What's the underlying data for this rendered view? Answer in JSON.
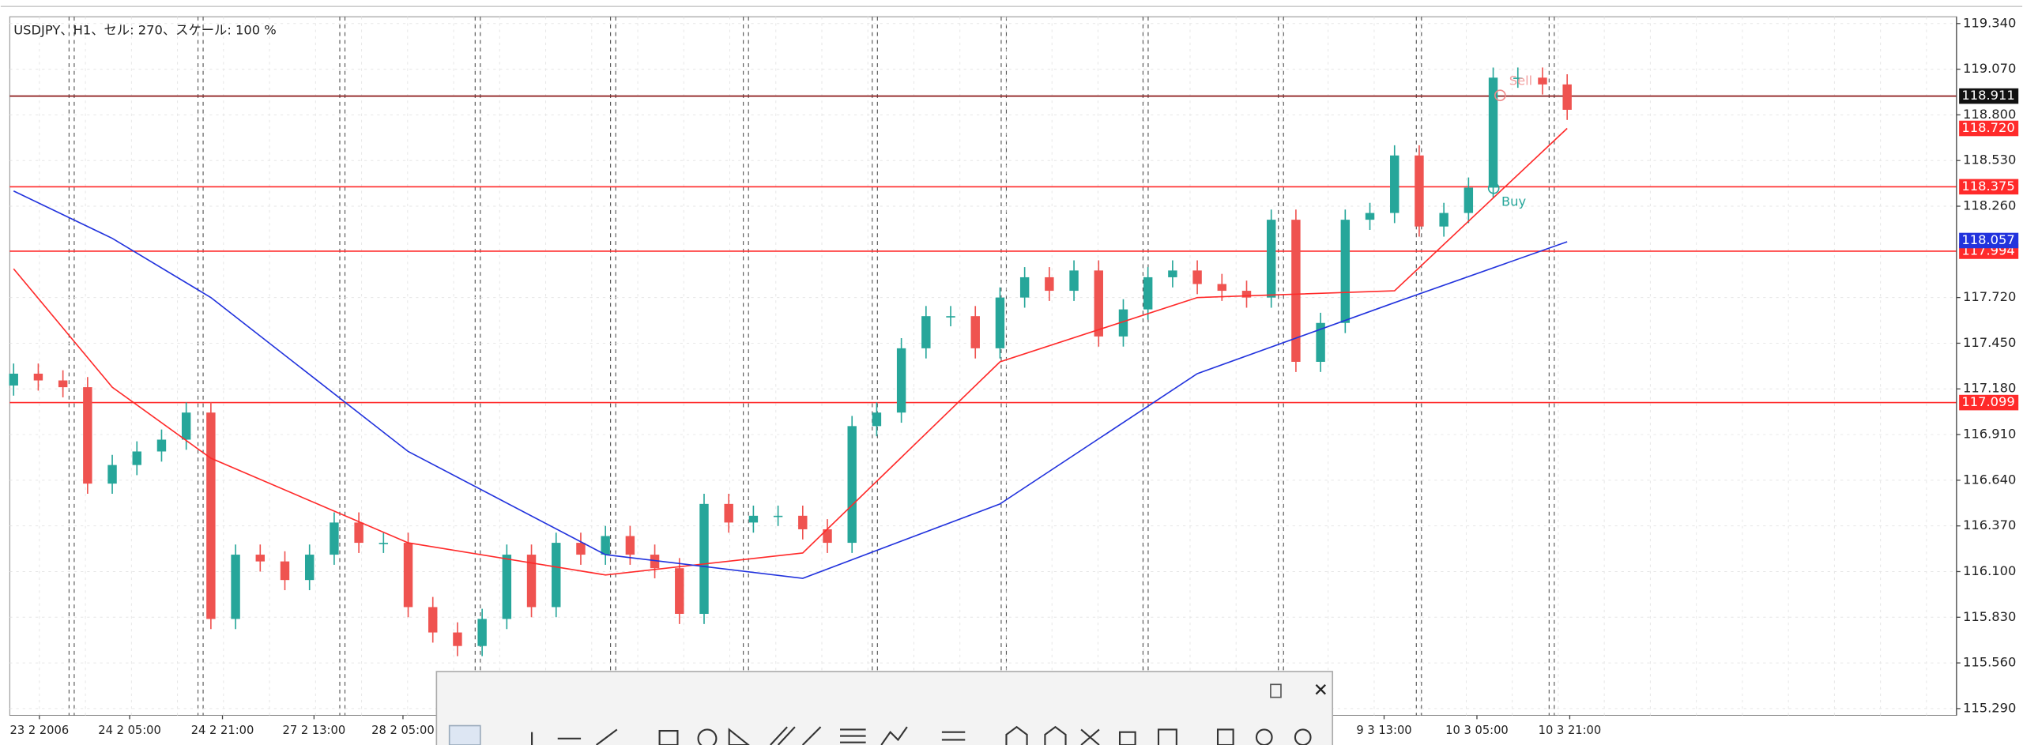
{
  "chart_data": {
    "type": "candlestick",
    "title": "USDJPY、H1、セル: 270、スケール: 100 %",
    "up_color": "#26a69a",
    "down_color": "#ef5350",
    "open": [
      117.2,
      117.27,
      117.23,
      117.19,
      116.62,
      116.73,
      116.81,
      116.88,
      117.04,
      115.82,
      116.2,
      116.16,
      116.05,
      116.2,
      116.39,
      116.27,
      116.27,
      115.89,
      115.74,
      115.66,
      115.82,
      116.2,
      115.89,
      116.27,
      116.2,
      116.31,
      116.2,
      116.12,
      115.85,
      116.5,
      116.39,
      116.43,
      116.43,
      116.35,
      116.27,
      116.96,
      117.04,
      117.42,
      117.61,
      117.61,
      117.42,
      117.72,
      117.84,
      117.76,
      117.88,
      117.49,
      117.65,
      117.84,
      117.88,
      117.8,
      117.76,
      117.72,
      118.18,
      117.34,
      117.57,
      118.18,
      118.22,
      118.56,
      118.14,
      118.22,
      118.37,
      119.02,
      119.02,
      118.98
    ],
    "high": [
      117.33,
      117.33,
      117.29,
      117.25,
      116.79,
      116.87,
      116.94,
      117.1,
      117.1,
      116.26,
      116.26,
      116.22,
      116.26,
      116.45,
      116.45,
      116.33,
      116.33,
      115.95,
      115.8,
      115.88,
      116.26,
      116.26,
      116.33,
      116.33,
      116.37,
      116.37,
      116.26,
      116.18,
      116.56,
      116.56,
      116.49,
      116.49,
      116.49,
      116.41,
      117.02,
      117.1,
      117.48,
      117.67,
      117.67,
      117.67,
      117.78,
      117.9,
      117.9,
      117.94,
      117.94,
      117.71,
      117.9,
      117.94,
      117.94,
      117.86,
      117.82,
      118.24,
      118.24,
      117.63,
      118.24,
      118.28,
      118.62,
      118.62,
      118.28,
      118.43,
      119.08,
      119.08,
      119.08,
      119.04
    ],
    "low": [
      117.14,
      117.17,
      117.13,
      116.56,
      116.56,
      116.67,
      116.75,
      116.82,
      115.76,
      115.76,
      116.1,
      115.99,
      115.99,
      116.14,
      116.21,
      116.21,
      115.83,
      115.68,
      115.6,
      115.6,
      115.76,
      115.83,
      115.83,
      116.14,
      116.14,
      116.14,
      116.06,
      115.79,
      115.79,
      116.33,
      116.33,
      116.37,
      116.29,
      116.21,
      116.21,
      116.9,
      116.98,
      117.36,
      117.55,
      117.36,
      117.36,
      117.66,
      117.7,
      117.7,
      117.43,
      117.43,
      117.59,
      117.78,
      117.74,
      117.7,
      117.66,
      117.66,
      117.28,
      117.28,
      117.51,
      118.12,
      118.16,
      118.08,
      118.08,
      118.16,
      118.31,
      118.96,
      118.92,
      118.77
    ],
    "close": [
      117.27,
      117.23,
      117.19,
      116.62,
      116.73,
      116.81,
      116.88,
      117.04,
      115.82,
      116.2,
      116.16,
      116.05,
      116.2,
      116.39,
      116.27,
      116.27,
      115.89,
      115.74,
      115.66,
      115.82,
      116.2,
      115.89,
      116.27,
      116.2,
      116.31,
      116.2,
      116.12,
      115.85,
      116.5,
      116.39,
      116.43,
      116.43,
      116.35,
      116.27,
      116.96,
      117.04,
      117.42,
      117.61,
      117.61,
      117.42,
      117.72,
      117.84,
      117.76,
      117.88,
      117.49,
      117.65,
      117.84,
      117.88,
      117.8,
      117.76,
      117.72,
      118.18,
      117.34,
      117.57,
      118.18,
      118.22,
      118.56,
      118.14,
      118.22,
      118.37,
      119.02,
      119.02,
      118.98,
      118.83
    ],
    "series": [
      {
        "type": "line",
        "color": "#ff2a2a",
        "x": [
          0,
          4,
          8,
          16,
          24,
          32,
          40,
          48,
          56,
          63
        ],
        "values": [
          117.89,
          117.19,
          116.77,
          116.27,
          116.08,
          116.21,
          117.34,
          117.72,
          117.76,
          118.72
        ]
      },
      {
        "type": "line",
        "color": "#2233dd",
        "x": [
          0,
          4,
          8,
          16,
          24,
          32,
          40,
          48,
          56,
          63
        ],
        "values": [
          118.35,
          118.07,
          117.72,
          116.81,
          116.2,
          116.06,
          116.5,
          117.27,
          117.69,
          118.05
        ]
      }
    ],
    "hlines": [
      {
        "value": 118.911,
        "label": "118.911",
        "color": "#8b1a1a",
        "box": "#111111"
      },
      {
        "value": 118.375,
        "label": "118.375",
        "color": "#ff2a2a",
        "box": "#ff2a2a"
      },
      {
        "value": 117.994,
        "label": "117.994",
        "color": "#ff2a2a",
        "box": "#ff2a2a"
      },
      {
        "value": 117.099,
        "label": "117.099",
        "color": "#ff2a2a",
        "box": "#ff2a2a"
      }
    ],
    "price_labels": [
      {
        "value": 118.72,
        "label": "118.720",
        "box": "#ff2a2a"
      },
      {
        "value": 118.057,
        "label": "118.057",
        "box": "#2233dd"
      }
    ],
    "annotations": [
      {
        "text": "Sell"
      },
      {
        "text": "Buy"
      }
    ],
    "x_labels": [
      "23 2 2006",
      "24 2 05:00",
      "24 2 21:00",
      "27 2 13:00",
      "28 2 05:00",
      "9 3 13:00",
      "10 3 05:00",
      "10 3 21:00"
    ],
    "ylim": [
      115.25,
      119.38
    ],
    "yticks": [
      {
        "value": 119.34,
        "label": "119.340"
      },
      {
        "value": 119.07,
        "label": "119.070"
      },
      {
        "value": 118.8,
        "label": "118.800"
      },
      {
        "value": 118.53,
        "label": "118.530"
      },
      {
        "value": 118.26,
        "label": "118.260"
      },
      {
        "value": 117.72,
        "label": "117.720"
      },
      {
        "value": 117.45,
        "label": "117.450"
      },
      {
        "value": 117.18,
        "label": "117.180"
      },
      {
        "value": 116.91,
        "label": "116.910"
      },
      {
        "value": 116.64,
        "label": "116.640"
      },
      {
        "value": 116.37,
        "label": "116.370"
      },
      {
        "value": 116.1,
        "label": "116.100"
      },
      {
        "value": 115.83,
        "label": "115.830"
      },
      {
        "value": 115.56,
        "label": "115.560"
      },
      {
        "value": 115.29,
        "label": "115.290"
      }
    ],
    "grid": true
  }
}
